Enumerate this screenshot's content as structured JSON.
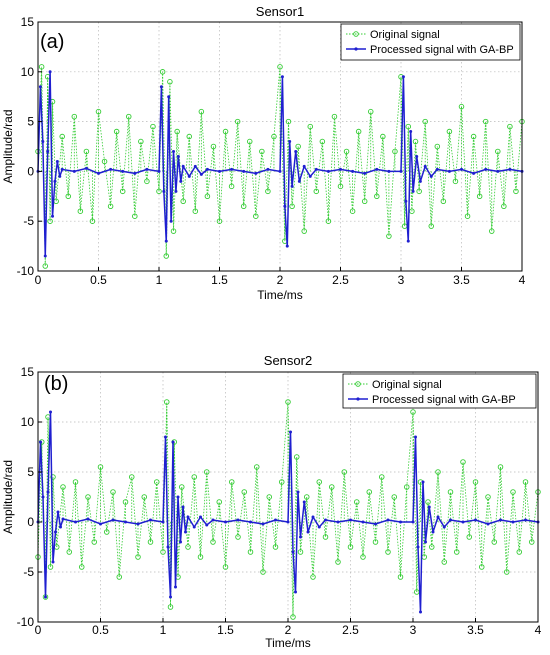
{
  "chart_data": [
    {
      "type": "line",
      "panel_label": "(a)",
      "title": "Sensor1",
      "xlabel": "Time/ms",
      "ylabel": "Amplitude/rad",
      "xlim": [
        0,
        4
      ],
      "ylim": [
        -10,
        15
      ],
      "xticks": [
        0,
        0.5,
        1,
        1.5,
        2,
        2.5,
        3,
        3.5,
        4
      ],
      "yticks": [
        -10,
        -5,
        0,
        5,
        10,
        15
      ],
      "grid": true,
      "legend_position": "top-right",
      "series": [
        {
          "name": "Original signal",
          "color": "#33cc33",
          "marker": "circle",
          "x": [
            0.0,
            0.03,
            0.06,
            0.08,
            0.1,
            0.12,
            0.15,
            0.2,
            0.25,
            0.3,
            0.35,
            0.4,
            0.45,
            0.5,
            0.55,
            0.6,
            0.65,
            0.7,
            0.75,
            0.8,
            0.85,
            0.9,
            0.95,
            1.0,
            1.03,
            1.06,
            1.09,
            1.12,
            1.15,
            1.2,
            1.25,
            1.3,
            1.35,
            1.4,
            1.45,
            1.5,
            1.55,
            1.6,
            1.65,
            1.7,
            1.75,
            1.8,
            1.85,
            1.9,
            1.95,
            2.0,
            2.04,
            2.07,
            2.1,
            2.15,
            2.2,
            2.25,
            2.3,
            2.35,
            2.4,
            2.45,
            2.5,
            2.55,
            2.6,
            2.65,
            2.7,
            2.75,
            2.8,
            2.85,
            2.9,
            2.95,
            3.0,
            3.03,
            3.06,
            3.09,
            3.12,
            3.15,
            3.2,
            3.25,
            3.3,
            3.35,
            3.4,
            3.45,
            3.5,
            3.55,
            3.6,
            3.65,
            3.7,
            3.75,
            3.8,
            3.85,
            3.9,
            3.95,
            4.0
          ],
          "values": [
            2.0,
            10.5,
            -9.5,
            9.5,
            -5.0,
            7.0,
            -3.0,
            3.5,
            -2.5,
            5.5,
            -4.0,
            2.0,
            -5.0,
            6.0,
            1.0,
            -3.5,
            4.0,
            -2.0,
            5.5,
            -4.5,
            3.0,
            -1.0,
            4.5,
            -2.0,
            10.0,
            -8.5,
            9.0,
            -6.0,
            4.0,
            -3.0,
            3.5,
            -4.0,
            6.0,
            -2.5,
            2.5,
            -5.0,
            4.0,
            -1.5,
            5.0,
            -3.5,
            3.0,
            -4.5,
            2.0,
            -2.0,
            3.5,
            10.5,
            -7.0,
            5.0,
            -3.5,
            2.5,
            -6.0,
            4.5,
            -2.0,
            3.0,
            -5.0,
            5.5,
            -1.5,
            2.0,
            -4.0,
            4.0,
            -3.0,
            6.0,
            -2.5,
            3.5,
            -6.5,
            2.0,
            9.5,
            -5.5,
            4.5,
            -4.0,
            3.0,
            -2.0,
            5.0,
            -5.5,
            2.5,
            -3.0,
            4.0,
            -1.0,
            6.5,
            -4.5,
            3.5,
            -2.5,
            5.0,
            -6.0,
            2.0,
            -3.5,
            4.5,
            -2.0,
            5.0
          ]
        },
        {
          "name": "Processed signal with GA-BP",
          "color": "#1f1fd0",
          "marker": "dot",
          "x": [
            0.0,
            0.02,
            0.04,
            0.06,
            0.08,
            0.1,
            0.12,
            0.14,
            0.16,
            0.18,
            0.2,
            0.3,
            0.4,
            0.5,
            0.6,
            0.7,
            0.8,
            0.9,
            1.0,
            1.02,
            1.04,
            1.06,
            1.08,
            1.1,
            1.12,
            1.14,
            1.16,
            1.18,
            1.2,
            1.25,
            1.3,
            1.35,
            1.4,
            1.5,
            1.6,
            1.7,
            1.8,
            1.9,
            2.0,
            2.02,
            2.04,
            2.06,
            2.08,
            2.1,
            2.13,
            2.16,
            2.2,
            2.25,
            2.3,
            2.4,
            2.5,
            2.6,
            2.7,
            2.8,
            2.9,
            3.0,
            3.02,
            3.04,
            3.06,
            3.08,
            3.1,
            3.13,
            3.16,
            3.2,
            3.25,
            3.3,
            3.4,
            3.5,
            3.6,
            3.7,
            3.8,
            3.9,
            4.0
          ],
          "values": [
            0.0,
            8.5,
            3.0,
            -8.5,
            2.0,
            10.0,
            -4.5,
            -1.0,
            1.0,
            -0.5,
            0.2,
            0.0,
            0.3,
            -0.2,
            0.2,
            0.0,
            -0.2,
            0.2,
            0.0,
            8.5,
            -2.0,
            -7.0,
            7.5,
            -5.0,
            2.0,
            -2.0,
            1.5,
            -1.0,
            0.5,
            -0.5,
            0.5,
            -0.3,
            0.2,
            0.0,
            0.2,
            0.0,
            -0.2,
            0.2,
            0.0,
            9.5,
            -3.5,
            -7.5,
            3.0,
            -1.5,
            2.0,
            -1.0,
            0.5,
            -0.5,
            0.2,
            0.0,
            0.2,
            0.0,
            -0.2,
            0.2,
            0.0,
            0.0,
            9.5,
            -3.0,
            -7.0,
            4.0,
            -2.0,
            1.5,
            -1.0,
            0.5,
            -0.5,
            0.2,
            0.0,
            0.2,
            -0.2,
            0.2,
            0.0,
            0.2,
            0.0
          ]
        }
      ]
    },
    {
      "type": "line",
      "panel_label": "(b)",
      "title": "Sensor2",
      "xlabel": "Time/ms",
      "ylabel": "Amplitude/rad",
      "xlim": [
        0,
        4
      ],
      "ylim": [
        -10,
        15
      ],
      "xticks": [
        0,
        0.5,
        1,
        1.5,
        2,
        2.5,
        3,
        3.5,
        4
      ],
      "yticks": [
        -10,
        -5,
        0,
        5,
        10,
        15
      ],
      "grid": true,
      "legend_position": "top-right",
      "series": [
        {
          "name": "Original signal",
          "color": "#33cc33",
          "marker": "circle",
          "x": [
            0.0,
            0.03,
            0.06,
            0.08,
            0.1,
            0.12,
            0.15,
            0.2,
            0.25,
            0.3,
            0.35,
            0.4,
            0.45,
            0.5,
            0.55,
            0.6,
            0.65,
            0.7,
            0.75,
            0.8,
            0.85,
            0.9,
            0.95,
            1.0,
            1.03,
            1.06,
            1.09,
            1.12,
            1.15,
            1.2,
            1.25,
            1.3,
            1.35,
            1.4,
            1.45,
            1.5,
            1.55,
            1.6,
            1.65,
            1.7,
            1.75,
            1.8,
            1.85,
            1.9,
            1.95,
            2.0,
            2.04,
            2.07,
            2.1,
            2.15,
            2.2,
            2.25,
            2.3,
            2.35,
            2.4,
            2.45,
            2.5,
            2.55,
            2.6,
            2.65,
            2.7,
            2.75,
            2.8,
            2.85,
            2.9,
            2.95,
            3.0,
            3.03,
            3.06,
            3.09,
            3.12,
            3.15,
            3.2,
            3.25,
            3.3,
            3.35,
            3.4,
            3.45,
            3.5,
            3.55,
            3.6,
            3.65,
            3.7,
            3.75,
            3.8,
            3.85,
            3.9,
            3.95,
            4.0
          ],
          "values": [
            -3.5,
            8.0,
            -7.5,
            10.5,
            -4.5,
            4.5,
            -2.5,
            3.5,
            -3.0,
            4.0,
            -4.5,
            2.5,
            -2.0,
            5.5,
            -1.0,
            3.0,
            -5.5,
            2.0,
            4.5,
            -3.5,
            2.5,
            -2.0,
            4.0,
            -3.0,
            12.0,
            -8.5,
            8.0,
            -5.5,
            3.5,
            -2.5,
            4.5,
            -3.5,
            5.0,
            -2.0,
            2.0,
            -4.5,
            4.0,
            -1.5,
            3.0,
            -3.0,
            5.5,
            -5.0,
            2.5,
            -2.5,
            4.0,
            12.0,
            -9.5,
            6.5,
            -3.0,
            2.5,
            -5.5,
            4.0,
            -1.5,
            3.5,
            -4.0,
            5.0,
            -2.5,
            2.0,
            -3.5,
            3.0,
            -2.0,
            4.5,
            -3.0,
            2.5,
            -5.5,
            3.5,
            11.0,
            -7.0,
            4.0,
            -3.5,
            2.0,
            -2.5,
            5.0,
            -4.0,
            3.0,
            -3.0,
            6.0,
            -1.5,
            4.0,
            -4.5,
            2.5,
            -2.0,
            5.5,
            -5.0,
            3.0,
            -3.0,
            4.0,
            -2.0,
            3.0
          ]
        },
        {
          "name": "Processed signal with GA-BP",
          "color": "#1f1fd0",
          "marker": "dot",
          "x": [
            0.0,
            0.02,
            0.04,
            0.06,
            0.08,
            0.1,
            0.12,
            0.14,
            0.16,
            0.18,
            0.2,
            0.3,
            0.4,
            0.5,
            0.6,
            0.7,
            0.8,
            0.9,
            1.0,
            1.02,
            1.04,
            1.06,
            1.08,
            1.1,
            1.12,
            1.14,
            1.16,
            1.18,
            1.2,
            1.25,
            1.3,
            1.35,
            1.4,
            1.5,
            1.6,
            1.7,
            1.8,
            1.9,
            2.0,
            2.02,
            2.04,
            2.06,
            2.08,
            2.1,
            2.13,
            2.16,
            2.2,
            2.25,
            2.3,
            2.4,
            2.5,
            2.6,
            2.7,
            2.8,
            2.9,
            3.0,
            3.02,
            3.04,
            3.06,
            3.08,
            3.1,
            3.13,
            3.16,
            3.2,
            3.25,
            3.3,
            3.4,
            3.5,
            3.6,
            3.7,
            3.8,
            3.9,
            4.0
          ],
          "values": [
            0.0,
            8.0,
            2.5,
            -7.5,
            3.0,
            11.0,
            -4.0,
            -1.0,
            1.0,
            -0.5,
            0.3,
            0.0,
            0.3,
            -0.2,
            0.2,
            0.0,
            -0.2,
            0.2,
            0.0,
            8.5,
            -2.5,
            -7.5,
            8.0,
            -6.5,
            2.5,
            -2.0,
            1.5,
            -1.0,
            0.5,
            -0.5,
            0.5,
            -0.3,
            0.2,
            0.0,
            0.2,
            0.0,
            -0.2,
            0.2,
            0.0,
            9.0,
            -3.0,
            -7.0,
            3.0,
            -1.5,
            2.0,
            -1.0,
            0.5,
            -0.5,
            0.2,
            0.0,
            0.2,
            0.0,
            -0.2,
            0.2,
            0.0,
            0.0,
            8.5,
            -2.5,
            -9.0,
            4.0,
            -2.0,
            1.5,
            -1.0,
            0.5,
            -0.5,
            0.2,
            0.0,
            0.2,
            -0.2,
            0.2,
            0.0,
            0.2,
            0.0
          ]
        }
      ]
    }
  ]
}
